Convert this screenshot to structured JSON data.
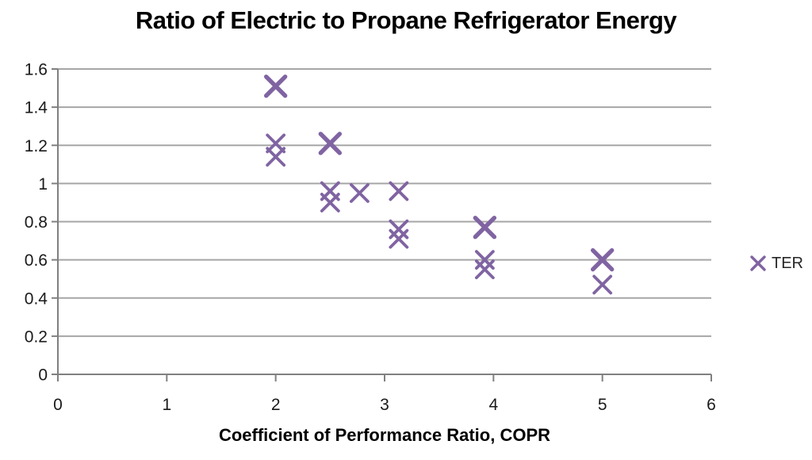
{
  "chart_data": {
    "type": "scatter",
    "title": "Ratio of Electric to Propane Refrigerator Energy",
    "xlabel": "Coefficient of Performance Ratio, COPR",
    "ylabel": "",
    "xlim": [
      0,
      6
    ],
    "ylim": [
      0,
      1.6
    ],
    "x_ticks": [
      0,
      1,
      2,
      3,
      4,
      5,
      6
    ],
    "x_tick_labels": [
      "0",
      "1",
      "2",
      "3",
      "4",
      "5",
      "6"
    ],
    "y_ticks": [
      0,
      0.2,
      0.4,
      0.6,
      0.8,
      1,
      1.2,
      1.4,
      1.6
    ],
    "y_tick_labels": [
      "0",
      "0.2",
      "0.4",
      "0.6",
      "0.8",
      "1",
      "1.2",
      "1.4",
      "1.6"
    ],
    "grid": "horizontal",
    "legend_position": "right",
    "series": [
      {
        "name": "TER",
        "marker": "x",
        "color": "#8064A2",
        "points": [
          {
            "x": 2.0,
            "y": 1.51,
            "bold": true
          },
          {
            "x": 2.0,
            "y": 1.21
          },
          {
            "x": 2.0,
            "y": 1.14
          },
          {
            "x": 2.5,
            "y": 1.21,
            "bold": true
          },
          {
            "x": 2.5,
            "y": 0.96
          },
          {
            "x": 2.5,
            "y": 0.9
          },
          {
            "x": 2.77,
            "y": 0.95
          },
          {
            "x": 3.13,
            "y": 0.96
          },
          {
            "x": 3.13,
            "y": 0.76
          },
          {
            "x": 3.13,
            "y": 0.71
          },
          {
            "x": 3.92,
            "y": 0.77,
            "bold": true
          },
          {
            "x": 3.92,
            "y": 0.6
          },
          {
            "x": 3.92,
            "y": 0.55
          },
          {
            "x": 5.0,
            "y": 0.6,
            "bold": true
          },
          {
            "x": 5.0,
            "y": 0.47
          }
        ]
      }
    ]
  },
  "colors": {
    "marker": "#8064A2",
    "gridline": "#A6A6A6",
    "axis": "#808080",
    "tick_text": "#1a1a1a",
    "title_text": "#000000"
  }
}
